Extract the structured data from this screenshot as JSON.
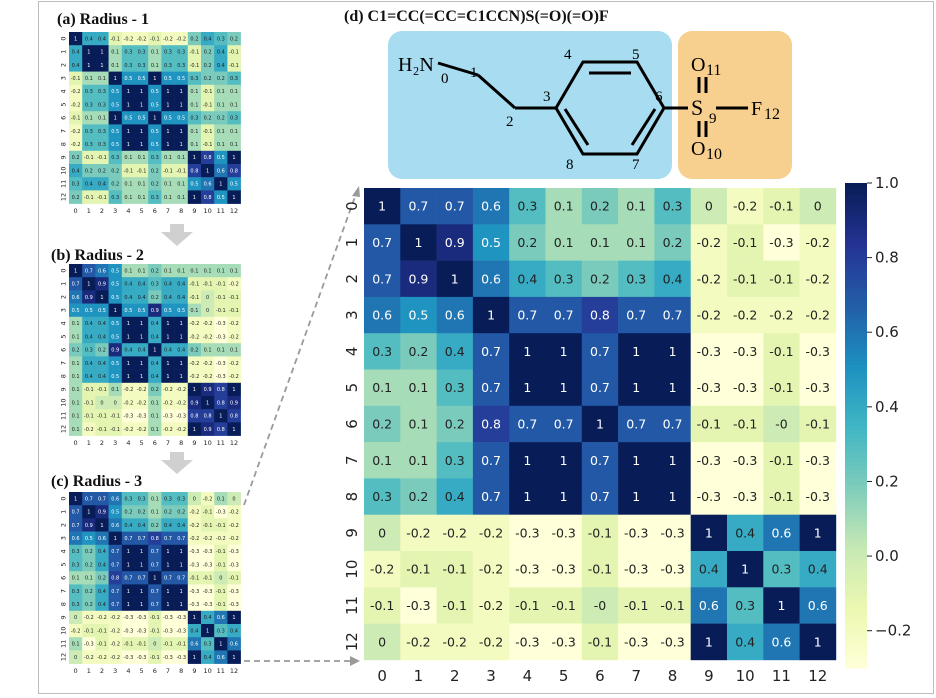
{
  "panels": {
    "a": "(a) Radius - 1",
    "b": "(b) Radius - 2",
    "c": "(c) Radius - 3",
    "d": "(d) C1=CC(=CC=C1CCN)S(=O)(=O)F"
  },
  "molecule": {
    "amine": "H₂N",
    "sulfur": "S",
    "fluorine": "F",
    "fluorine_index": "12",
    "oxygen": "O",
    "oxygen_top_index": "11",
    "oxygen_bottom_index": "10",
    "atom_numbers": [
      "0",
      "1",
      "2",
      "3",
      "4",
      "5",
      "6",
      "7",
      "8",
      "9"
    ],
    "colors": {
      "aliphatic_box": "#a8dcf0",
      "sulfonyl_box": "#f7cf8f"
    }
  },
  "chart_data": [
    {
      "type": "heatmap",
      "title": "(d) C1=CC(=CC=C1CCN)S(=O)(=O)F",
      "x_tick_labels": [
        "0",
        "1",
        "2",
        "3",
        "4",
        "5",
        "6",
        "7",
        "8",
        "9",
        "10",
        "11",
        "12"
      ],
      "y_tick_labels": [
        "0",
        "1",
        "2",
        "3",
        "4",
        "5",
        "6",
        "7",
        "8",
        "9",
        "10",
        "11",
        "12"
      ],
      "colormap": "YlGnBu",
      "color_range": [
        -0.3,
        1.0
      ],
      "colorbar_ticks": [
        "1.0",
        "0.8",
        "0.6",
        "0.4",
        "0.2",
        "0.0",
        "−0.2"
      ],
      "values": [
        [
          1,
          0.7,
          0.7,
          0.6,
          0.3,
          0.1,
          0.2,
          0.1,
          0.3,
          0,
          -0.2,
          -0.1,
          0
        ],
        [
          0.7,
          1,
          0.9,
          0.5,
          0.2,
          0.1,
          0.1,
          0.1,
          0.2,
          -0.2,
          -0.1,
          -0.3,
          -0.2
        ],
        [
          0.7,
          0.9,
          1,
          0.6,
          0.4,
          0.3,
          0.2,
          0.3,
          0.4,
          -0.2,
          -0.1,
          -0.1,
          -0.2
        ],
        [
          0.6,
          0.5,
          0.6,
          1,
          0.7,
          0.7,
          0.8,
          0.7,
          0.7,
          -0.2,
          -0.2,
          -0.2,
          -0.2
        ],
        [
          0.3,
          0.2,
          0.4,
          0.7,
          1,
          1,
          0.7,
          1,
          1,
          -0.3,
          -0.3,
          -0.1,
          -0.3
        ],
        [
          0.1,
          0.1,
          0.3,
          0.7,
          1,
          1,
          0.7,
          1,
          1,
          -0.3,
          -0.3,
          -0.1,
          -0.3
        ],
        [
          0.2,
          0.1,
          0.2,
          0.8,
          0.7,
          0.7,
          1,
          0.7,
          0.7,
          -0.1,
          -0.1,
          "-0",
          -0.1
        ],
        [
          0.1,
          0.1,
          0.3,
          0.7,
          1,
          1,
          0.7,
          1,
          1,
          -0.3,
          -0.3,
          -0.1,
          -0.3
        ],
        [
          0.3,
          0.2,
          0.4,
          0.7,
          1,
          1,
          0.7,
          1,
          1,
          -0.3,
          -0.3,
          -0.1,
          -0.3
        ],
        [
          0,
          -0.2,
          -0.2,
          -0.2,
          -0.3,
          -0.3,
          -0.1,
          -0.3,
          -0.3,
          1,
          0.4,
          0.6,
          1
        ],
        [
          -0.2,
          -0.1,
          -0.1,
          -0.2,
          -0.3,
          -0.3,
          -0.1,
          -0.3,
          -0.3,
          0.4,
          1,
          0.3,
          0.4
        ],
        [
          -0.1,
          -0.3,
          -0.1,
          -0.2,
          -0.1,
          -0.1,
          "-0",
          -0.1,
          -0.1,
          0.6,
          0.3,
          1,
          0.6
        ],
        [
          0,
          -0.2,
          -0.2,
          -0.2,
          -0.3,
          -0.3,
          -0.1,
          -0.3,
          -0.3,
          1,
          0.4,
          0.6,
          1
        ]
      ]
    },
    {
      "type": "heatmap",
      "title": "(a) Radius - 1",
      "x_tick_labels": [
        "0",
        "1",
        "2",
        "3",
        "4",
        "5",
        "6",
        "7",
        "8",
        "9",
        "10",
        "11",
        "12"
      ],
      "y_tick_labels": [
        "0",
        "1",
        "2",
        "3",
        "4",
        "5",
        "6",
        "7",
        "8",
        "9",
        "10",
        "11",
        "12"
      ],
      "colormap": "YlGnBu",
      "values": [
        [
          1,
          0.4,
          0.4,
          -0.1,
          -0.2,
          -0.2,
          -0.1,
          -0.2,
          -0.2,
          0.2,
          0.4,
          0.3,
          0.2
        ],
        [
          0.4,
          1,
          1,
          0.1,
          0.3,
          0.3,
          0.1,
          0.3,
          0.3,
          -0.1,
          0.2,
          0.4,
          -0.1
        ],
        [
          0.4,
          1,
          1,
          0.1,
          0.3,
          0.3,
          0.1,
          0.3,
          0.3,
          -0.1,
          0.2,
          0.4,
          -0.1
        ],
        [
          -0.1,
          0.1,
          0.1,
          1,
          0.5,
          0.5,
          1,
          0.5,
          0.5,
          0.3,
          0.2,
          0.2,
          0.3
        ],
        [
          -0.2,
          0.3,
          0.3,
          0.5,
          1,
          1,
          0.5,
          1,
          1,
          0.1,
          -0.1,
          0.1,
          0.1
        ],
        [
          -0.2,
          0.3,
          0.3,
          0.5,
          1,
          1,
          0.5,
          1,
          1,
          0.1,
          -0.1,
          0.1,
          0.1
        ],
        [
          -0.1,
          0.1,
          0.1,
          1,
          0.5,
          0.5,
          1,
          0.5,
          0.5,
          0.3,
          0.2,
          0.2,
          0.3
        ],
        [
          -0.2,
          0.3,
          0.3,
          0.5,
          1,
          1,
          0.5,
          1,
          1,
          0.1,
          -0.1,
          0.1,
          0.1
        ],
        [
          -0.2,
          0.3,
          0.3,
          0.5,
          1,
          1,
          0.5,
          1,
          1,
          0.1,
          -0.1,
          0.1,
          0.1
        ],
        [
          0.2,
          -0.1,
          -0.1,
          0.3,
          0.1,
          0.1,
          0.3,
          0.1,
          0.1,
          1,
          0.8,
          0.5,
          1
        ],
        [
          0.4,
          0.2,
          0.2,
          0.2,
          -0.1,
          -0.1,
          0.2,
          -0.1,
          -0.1,
          0.8,
          1,
          0.6,
          0.8
        ],
        [
          0.3,
          0.4,
          0.4,
          0.2,
          0.1,
          0.1,
          0.2,
          0.1,
          0.1,
          0.5,
          0.6,
          1,
          0.5
        ],
        [
          0.2,
          -0.1,
          -0.1,
          0.3,
          0.1,
          0.1,
          0.3,
          0.1,
          0.1,
          1,
          0.8,
          0.5,
          1
        ]
      ]
    },
    {
      "type": "heatmap",
      "title": "(b) Radius - 2",
      "x_tick_labels": [
        "0",
        "1",
        "2",
        "3",
        "4",
        "5",
        "6",
        "7",
        "8",
        "9",
        "10",
        "11",
        "12"
      ],
      "y_tick_labels": [
        "0",
        "1",
        "2",
        "3",
        "4",
        "5",
        "6",
        "7",
        "8",
        "9",
        "10",
        "11",
        "12"
      ],
      "colormap": "YlGnBu",
      "values": [
        [
          1,
          0.7,
          0.6,
          0.5,
          0.1,
          0.1,
          0.2,
          0.1,
          0.1,
          0.1,
          0.1,
          0.1,
          0.1
        ],
        [
          0.7,
          1,
          0.9,
          0.5,
          0.4,
          0.4,
          0.3,
          0.4,
          0.4,
          -0.1,
          -0.1,
          -0.1,
          -0.2
        ],
        [
          0.6,
          0.9,
          1,
          0.5,
          0.4,
          0.4,
          0.2,
          0.4,
          0.4,
          -0.1,
          0,
          -0.1,
          -0.1
        ],
        [
          0.5,
          0.5,
          0.5,
          1,
          0.5,
          0.5,
          0.9,
          0.5,
          0.5,
          0.1,
          0,
          -0.1,
          -0.1
        ],
        [
          0.1,
          0.4,
          0.4,
          0.5,
          1,
          1,
          0.4,
          1,
          1,
          -0.2,
          -0.2,
          -0.3,
          -0.2
        ],
        [
          0.1,
          0.4,
          0.4,
          0.5,
          1,
          1,
          0.4,
          1,
          1,
          -0.2,
          -0.2,
          -0.3,
          -0.2
        ],
        [
          0.2,
          0.3,
          0.2,
          0.9,
          0.4,
          0.4,
          1,
          0.4,
          0.4,
          0.2,
          0.1,
          0.1,
          0.1
        ],
        [
          0.1,
          0.4,
          0.4,
          0.5,
          1,
          1,
          0.4,
          1,
          1,
          -0.2,
          -0.2,
          -0.3,
          -0.2
        ],
        [
          0.1,
          0.4,
          0.4,
          0.5,
          1,
          1,
          0.4,
          1,
          1,
          -0.2,
          -0.2,
          -0.3,
          -0.2
        ],
        [
          0.1,
          -0.1,
          -0.1,
          0.1,
          -0.2,
          -0.2,
          0.2,
          -0.2,
          -0.2,
          1,
          0.9,
          0.8,
          1
        ],
        [
          0.1,
          -0.1,
          0,
          0,
          -0.2,
          -0.2,
          0.1,
          -0.2,
          -0.2,
          0.9,
          1,
          0.8,
          0.9
        ],
        [
          0.1,
          -0.1,
          -0.1,
          -0.1,
          -0.3,
          -0.3,
          0.1,
          -0.3,
          -0.3,
          0.8,
          0.8,
          1,
          0.8
        ],
        [
          0.1,
          -0.2,
          -0.1,
          -0.1,
          -0.2,
          -0.2,
          0.1,
          -0.2,
          -0.2,
          1,
          0.9,
          0.8,
          1
        ]
      ]
    },
    {
      "type": "heatmap",
      "title": "(c) Radius - 3",
      "x_tick_labels": [
        "0",
        "1",
        "2",
        "3",
        "4",
        "5",
        "6",
        "7",
        "8",
        "9",
        "10",
        "11",
        "12"
      ],
      "y_tick_labels": [
        "0",
        "1",
        "2",
        "3",
        "4",
        "5",
        "6",
        "7",
        "8",
        "9",
        "10",
        "11",
        "12"
      ],
      "colormap": "YlGnBu",
      "values": [
        [
          1,
          0.7,
          0.7,
          0.6,
          0.3,
          0.3,
          0.1,
          0.3,
          0.3,
          0,
          -0.2,
          0.1,
          0
        ],
        [
          0.7,
          1,
          0.9,
          0.5,
          0.2,
          0.2,
          0.1,
          0.2,
          0.2,
          -0.2,
          -0.1,
          -0.3,
          -0.2
        ],
        [
          0.7,
          0.9,
          1,
          0.6,
          0.4,
          0.4,
          0.2,
          0.4,
          0.4,
          -0.2,
          -0.1,
          -0.1,
          -0.2
        ],
        [
          0.6,
          0.5,
          0.6,
          1,
          0.7,
          0.7,
          0.8,
          0.7,
          0.7,
          -0.2,
          -0.2,
          -0.2,
          -0.2
        ],
        [
          0.3,
          0.2,
          0.4,
          0.7,
          1,
          1,
          0.7,
          1,
          1,
          -0.3,
          -0.3,
          -0.1,
          -0.3
        ],
        [
          0.3,
          0.2,
          0.4,
          0.7,
          1,
          1,
          0.7,
          1,
          1,
          -0.3,
          -0.3,
          -0.1,
          -0.3
        ],
        [
          0.1,
          0.1,
          0.2,
          0.8,
          0.7,
          0.7,
          1,
          0.7,
          0.7,
          -0.1,
          -0.1,
          0,
          -0.1
        ],
        [
          0.3,
          0.2,
          0.4,
          0.7,
          1,
          1,
          0.7,
          1,
          1,
          -0.3,
          -0.3,
          -0.1,
          -0.3
        ],
        [
          0.3,
          0.2,
          0.4,
          0.7,
          1,
          1,
          0.7,
          1,
          1,
          -0.3,
          -0.3,
          -0.1,
          -0.3
        ],
        [
          0,
          -0.2,
          -0.2,
          -0.2,
          -0.3,
          -0.3,
          -0.1,
          -0.3,
          -0.3,
          1,
          0.4,
          0.6,
          1
        ],
        [
          -0.2,
          -0.1,
          -0.1,
          -0.2,
          -0.3,
          -0.3,
          -0.1,
          -0.3,
          -0.3,
          0.4,
          1,
          0.3,
          0.4
        ],
        [
          0.1,
          -0.3,
          -0.1,
          -0.2,
          -0.1,
          -0.1,
          0,
          -0.1,
          -0.1,
          0.6,
          0.3,
          1,
          0.6
        ],
        [
          0,
          -0.2,
          -0.2,
          -0.2,
          -0.3,
          -0.3,
          -0.1,
          -0.3,
          -0.3,
          1,
          0.4,
          0.6,
          1
        ]
      ]
    }
  ]
}
